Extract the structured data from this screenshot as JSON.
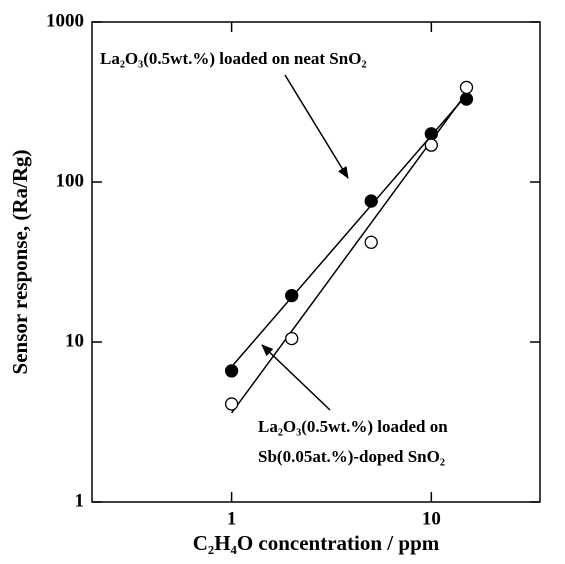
{
  "chart_data": {
    "type": "scatter",
    "x_label": "C₂H₄O concentration / ppm",
    "y_label": "Sensor response, (Ra/Rg)",
    "xscale": "log",
    "yscale": "log",
    "xlim": [
      0.2,
      35
    ],
    "ylim": [
      1,
      1000
    ],
    "xticks": [
      1,
      10
    ],
    "yticks": [
      1,
      10,
      100,
      1000
    ],
    "series": [
      {
        "marker": "filled",
        "color": "#000000",
        "x": [
          1,
          2,
          5,
          10,
          15
        ],
        "values": [
          6.6,
          19.5,
          76,
          200,
          330
        ],
        "fit": {
          "x": [
            1,
            15
          ],
          "values": [
            7,
            350
          ]
        }
      },
      {
        "marker": "open",
        "color": "#000000",
        "x": [
          1,
          2,
          5,
          10,
          15
        ],
        "values": [
          4.1,
          10.5,
          42,
          170,
          390
        ],
        "fit": {
          "x": [
            1,
            15
          ],
          "values": [
            3.6,
            360
          ]
        }
      }
    ],
    "annotations": [
      {
        "lines": [
          "La₂O₃(0.5wt.%) loaded on neat SnO₂"
        ]
      },
      {
        "lines": [
          "La₂O₃(0.5wt.%) loaded on",
          "Sb(0.05at.%)-doped SnO₂"
        ]
      }
    ]
  }
}
